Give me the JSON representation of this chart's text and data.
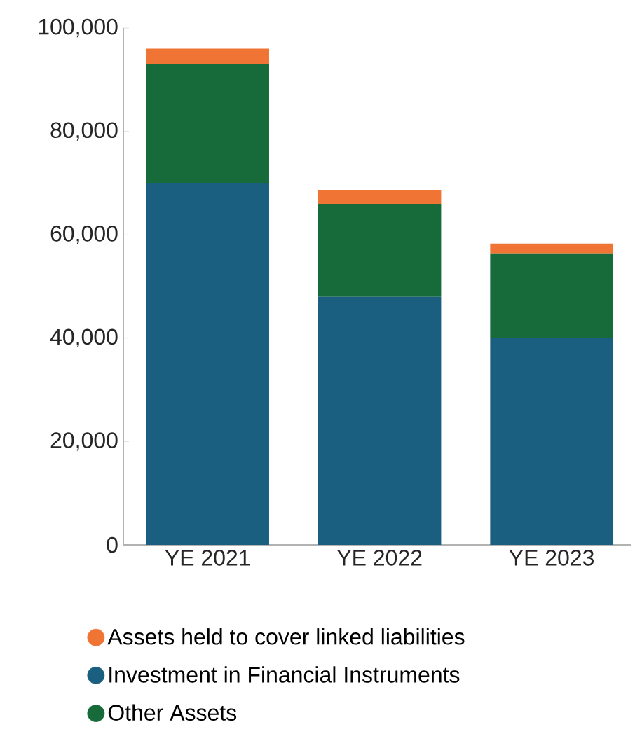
{
  "chart_data": {
    "type": "bar",
    "stacked": true,
    "categories": [
      "YE 2021",
      "YE 2022",
      "YE 2023"
    ],
    "series": [
      {
        "name": "Investment in Financial Instruments",
        "color": "#1a5e80",
        "values": [
          70000,
          48000,
          40000
        ]
      },
      {
        "name": "Other Assets",
        "color": "#176b3a",
        "values": [
          23000,
          18000,
          16400
        ]
      },
      {
        "name": "Assets held to cover linked liabilities",
        "color": "#f07534",
        "values": [
          3000,
          2700,
          1900
        ]
      }
    ],
    "ylim": [
      0,
      100000
    ],
    "yticks": [
      0,
      {
        "value": 20000,
        "label": "20,000"
      },
      {
        "value": 40000,
        "label": "40,000"
      },
      {
        "value": 60000,
        "label": "60,000"
      },
      {
        "value": 80000,
        "label": "80,000"
      },
      {
        "value": 100000,
        "label": "100,000"
      }
    ],
    "legend": "bottom",
    "grid": false
  }
}
